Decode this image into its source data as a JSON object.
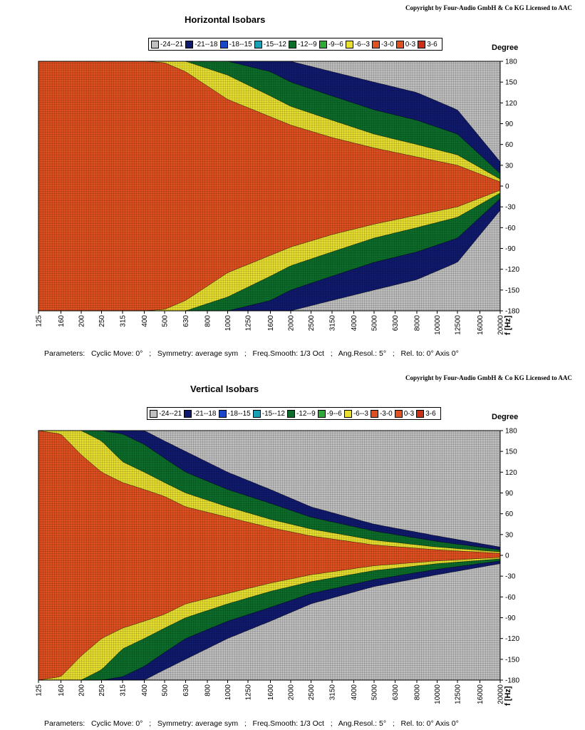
{
  "chart_data": [
    {
      "type": "heatmap",
      "title": "Horizontal Isobars",
      "copyright": "Copyright by Four-Audio GmbH & Co KG   Licensed to AAC",
      "x_label": "f [Hz]",
      "y_label": "Degree",
      "x_ticks": [
        "125",
        "160",
        "200",
        "250",
        "315",
        "400",
        "500",
        "630",
        "800",
        "1000",
        "1250",
        "1600",
        "2000",
        "2500",
        "3150",
        "4000",
        "5000",
        "6300",
        "8000",
        "10000",
        "12500",
        "16000",
        "20000"
      ],
      "y_ticks": [
        "180",
        "150",
        "120",
        "90",
        "60",
        "30",
        "0",
        "-30",
        "-60",
        "-90",
        "-120",
        "-150",
        "-180"
      ],
      "x_scale": "log",
      "xlim": [
        125,
        20000
      ],
      "ylim": [
        -180,
        180
      ],
      "legend": [
        "-24--21",
        "-21--18",
        "-18--15",
        "-15--12",
        "-12--9",
        "-9--6",
        "-6--3",
        "-3-0",
        "0-3",
        "3-6"
      ],
      "beamwidth_half_angle_deg": {
        "freq": [
          125,
          400,
          500,
          630,
          1000,
          1600,
          2000,
          3150,
          5000,
          8000,
          12500,
          20000
        ],
        "minus3dB": [
          180,
          180,
          178,
          165,
          125,
          100,
          88,
          70,
          55,
          42,
          30,
          6
        ],
        "minus6dB": [
          180,
          180,
          180,
          180,
          160,
          130,
          115,
          95,
          75,
          60,
          45,
          10
        ],
        "minus12dB": [
          180,
          180,
          180,
          180,
          180,
          165,
          150,
          130,
          110,
          95,
          75,
          18
        ],
        "minus18dB": [
          180,
          180,
          180,
          180,
          180,
          180,
          180,
          165,
          150,
          135,
          110,
          35
        ]
      },
      "params": {
        "label": "Parameters:",
        "cyclic": "Cyclic Move:  0°",
        "symmetry": "Symmetry: average sym",
        "smooth": "Freq.Smooth: 1/3  Oct",
        "resol": "Ang.Resol.:  5°",
        "rel": "Rel. to: 0° Axis    0°",
        "sep": ";"
      }
    },
    {
      "type": "heatmap",
      "title": "Vertical Isobars",
      "copyright": "Copyright by Four-Audio GmbH & Co KG   Licensed to AAC",
      "x_label": "f [Hz]",
      "y_label": "Degree",
      "x_ticks": [
        "125",
        "160",
        "200",
        "250",
        "315",
        "400",
        "500",
        "630",
        "800",
        "1000",
        "1250",
        "1600",
        "2000",
        "2500",
        "3150",
        "4000",
        "5000",
        "6300",
        "8000",
        "10000",
        "12500",
        "16000",
        "20000"
      ],
      "y_ticks": [
        "180",
        "150",
        "120",
        "90",
        "60",
        "30",
        "0",
        "-30",
        "-60",
        "-90",
        "-120",
        "-150",
        "-180"
      ],
      "x_scale": "log",
      "xlim": [
        125,
        20000
      ],
      "ylim": [
        -180,
        180
      ],
      "legend": [
        "-24--21",
        "-21--18",
        "-18--15",
        "-15--12",
        "-12--9",
        "-9--6",
        "-6--3",
        "-3-0",
        "0-3",
        "3-6"
      ],
      "beamwidth_half_angle_deg": {
        "freq": [
          125,
          160,
          200,
          250,
          315,
          400,
          500,
          630,
          1000,
          1600,
          2500,
          5000,
          10000,
          20000
        ],
        "minus3dB": [
          180,
          175,
          145,
          120,
          105,
          95,
          85,
          70,
          55,
          40,
          28,
          15,
          8,
          3
        ],
        "minus6dB": [
          180,
          180,
          180,
          165,
          135,
          120,
          105,
          90,
          70,
          52,
          38,
          22,
          12,
          5
        ],
        "minus12dB": [
          180,
          180,
          180,
          180,
          175,
          160,
          140,
          120,
          95,
          75,
          55,
          35,
          20,
          8
        ],
        "minus18dB": [
          180,
          180,
          180,
          180,
          180,
          180,
          165,
          150,
          120,
          95,
          70,
          45,
          28,
          12
        ]
      },
      "params": {
        "label": "Parameters:",
        "cyclic": "Cyclic Move:  0°",
        "symmetry": "Symmetry: average sym",
        "smooth": "Freq.Smooth: 1/3  Oct",
        "resol": "Ang.Resol.:  5°",
        "rel": "Rel. to: 0° Axis    0°",
        "sep": ";"
      }
    }
  ],
  "colors": {
    "-24--21": "#c0c0c0",
    "-21--18": "#101a6e",
    "-18--15": "#1a46c8",
    "-15--12": "#1aa0b4",
    "-12--9": "#0c6e2a",
    "-9--6": "#2ea838",
    "-6--3": "#e8e030",
    "-3-0": "#e05020",
    "0-3": "#e05020",
    "3-6": "#c83018"
  }
}
